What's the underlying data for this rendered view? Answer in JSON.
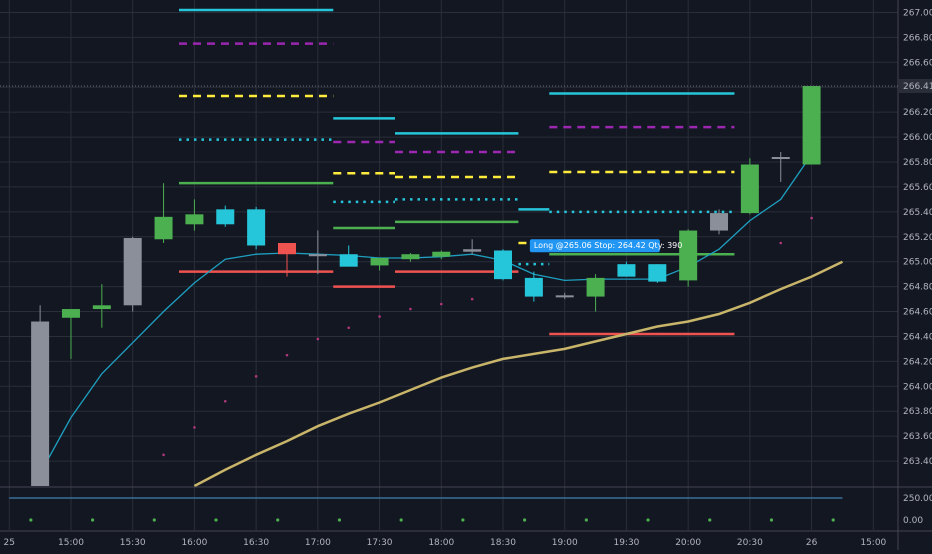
{
  "colors": {
    "background": "#131722",
    "grid": "#2a2e39",
    "text": "#b2b5be",
    "bull": "#4caf50",
    "bear": "#26c6da",
    "doji": "#8a8f9a",
    "ema_fast": "#1e9fc0",
    "sma_slow": "#c8b56a",
    "cyan_level": "#26c6da",
    "purple_level": "#9c27b0",
    "yellow_level": "#ffeb3b",
    "green_level": "#4caf50",
    "red_level": "#ef5350",
    "sub_line": "#3a6e9a",
    "sub_dots": "#4caf50",
    "tooltip_bg": "#2196f3"
  },
  "chart_data": {
    "type": "candlestick",
    "title": "",
    "xlabel": "",
    "ylabel": "",
    "x_ticks": [
      "25",
      "15:00",
      "15:30",
      "16:00",
      "16:30",
      "17:00",
      "17:30",
      "18:00",
      "18:30",
      "19:00",
      "19:30",
      "20:00",
      "20:30",
      "26",
      "15:00"
    ],
    "x_range": [
      -1.3,
      27.8
    ],
    "ylim": [
      263.2,
      267.1
    ],
    "y_ticks": [
      "267.00",
      "266.80",
      "266.60",
      "266.40",
      "266.20",
      "266.00",
      "265.80",
      "265.60",
      "265.40",
      "265.20",
      "265.00",
      "264.80",
      "264.60",
      "264.40",
      "264.20",
      "264.00",
      "263.80",
      "263.60",
      "263.40"
    ],
    "last_price": "266.41",
    "candles": [
      {
        "t": 0,
        "o": 263.2,
        "h": 264.65,
        "l": 263.2,
        "c": 264.52
      },
      {
        "t": 1,
        "o": 264.55,
        "h": 264.6,
        "l": 264.22,
        "c": 264.62
      },
      {
        "t": 2,
        "o": 264.62,
        "h": 264.82,
        "l": 264.47,
        "c": 264.65
      },
      {
        "t": 3,
        "o": 264.65,
        "h": 265.2,
        "l": 264.6,
        "c": 265.19
      },
      {
        "t": 4,
        "o": 265.18,
        "h": 265.63,
        "l": 265.15,
        "c": 265.36
      },
      {
        "t": 5,
        "o": 265.3,
        "h": 265.5,
        "l": 265.25,
        "c": 265.38
      },
      {
        "t": 6,
        "o": 265.42,
        "h": 265.45,
        "l": 265.28,
        "c": 265.3
      },
      {
        "t": 7,
        "o": 265.42,
        "h": 265.44,
        "l": 265.1,
        "c": 265.13
      },
      {
        "t": 8,
        "o": 265.15,
        "h": 265.15,
        "l": 264.88,
        "c": 265.06
      },
      {
        "t": 9,
        "o": 265.06,
        "h": 265.25,
        "l": 264.9,
        "c": 265.05
      },
      {
        "t": 10,
        "o": 265.06,
        "h": 265.13,
        "l": 264.97,
        "c": 264.96
      },
      {
        "t": 11,
        "o": 264.97,
        "h": 265.03,
        "l": 264.93,
        "c": 265.03
      },
      {
        "t": 12,
        "o": 265.02,
        "h": 265.07,
        "l": 265.0,
        "c": 265.06
      },
      {
        "t": 13,
        "o": 265.04,
        "h": 265.09,
        "l": 265.02,
        "c": 265.08
      },
      {
        "t": 14,
        "o": 265.1,
        "h": 265.18,
        "l": 265.06,
        "c": 265.08
      },
      {
        "t": 15,
        "o": 265.09,
        "h": 265.1,
        "l": 264.85,
        "c": 264.86
      },
      {
        "t": 16,
        "o": 264.87,
        "h": 264.92,
        "l": 264.68,
        "c": 264.72
      },
      {
        "t": 17,
        "o": 264.72,
        "h": 264.75,
        "l": 264.7,
        "c": 264.73
      },
      {
        "t": 18,
        "o": 264.72,
        "h": 264.9,
        "l": 264.6,
        "c": 264.87
      },
      {
        "t": 19,
        "o": 264.98,
        "h": 265.0,
        "l": 264.88,
        "c": 264.88
      },
      {
        "t": 20,
        "o": 264.98,
        "h": 264.98,
        "l": 264.83,
        "c": 264.84
      },
      {
        "t": 21,
        "o": 264.85,
        "h": 265.26,
        "l": 264.8,
        "c": 265.25
      },
      {
        "t": 22,
        "o": 265.25,
        "h": 265.42,
        "l": 265.22,
        "c": 265.39
      },
      {
        "t": 23,
        "o": 265.39,
        "h": 265.83,
        "l": 265.38,
        "c": 265.78
      },
      {
        "t": 24,
        "o": 265.84,
        "h": 265.88,
        "l": 265.64,
        "c": 265.83
      },
      {
        "t": 25,
        "o": 265.78,
        "h": 266.41,
        "l": 265.78,
        "c": 266.41
      }
    ],
    "ema_fast": [
      [
        0,
        263.3
      ],
      [
        1,
        263.75
      ],
      [
        2,
        264.1
      ],
      [
        3,
        264.35
      ],
      [
        4,
        264.6
      ],
      [
        5,
        264.83
      ],
      [
        6,
        265.02
      ],
      [
        7,
        265.06
      ],
      [
        8,
        265.07
      ],
      [
        9,
        265.06
      ],
      [
        10,
        265.05
      ],
      [
        11,
        265.03
      ],
      [
        12,
        265.03
      ],
      [
        13,
        265.04
      ],
      [
        14,
        265.06
      ],
      [
        15,
        265.01
      ],
      [
        16,
        264.9
      ],
      [
        17,
        264.85
      ],
      [
        18,
        264.86
      ],
      [
        19,
        264.86
      ],
      [
        20,
        264.86
      ],
      [
        21,
        264.96
      ],
      [
        22,
        265.1
      ],
      [
        23,
        265.33
      ],
      [
        24,
        265.5
      ],
      [
        25,
        265.86
      ]
    ],
    "sma_slow": [
      [
        5,
        263.2
      ],
      [
        6,
        263.33
      ],
      [
        7,
        263.45
      ],
      [
        8,
        263.56
      ],
      [
        9,
        263.68
      ],
      [
        10,
        263.78
      ],
      [
        11,
        263.87
      ],
      [
        12,
        263.97
      ],
      [
        13,
        264.07
      ],
      [
        14,
        264.15
      ],
      [
        15,
        264.22
      ],
      [
        16,
        264.26
      ],
      [
        17,
        264.3
      ],
      [
        18,
        264.36
      ],
      [
        19,
        264.42
      ],
      [
        20,
        264.48
      ],
      [
        21,
        264.52
      ],
      [
        22,
        264.58
      ],
      [
        23,
        264.67
      ],
      [
        24,
        264.78
      ],
      [
        25,
        264.88
      ],
      [
        26,
        265.0
      ]
    ],
    "psar_dots": [
      [
        4,
        263.45
      ],
      [
        5,
        263.67
      ],
      [
        6,
        263.88
      ],
      [
        7,
        264.08
      ],
      [
        8,
        264.25
      ],
      [
        9,
        264.38
      ],
      [
        10,
        264.47
      ],
      [
        11,
        264.56
      ],
      [
        12,
        264.62
      ],
      [
        13,
        264.66
      ],
      [
        14,
        264.7
      ],
      [
        24,
        265.15
      ],
      [
        25,
        265.35
      ]
    ],
    "levels": [
      {
        "from": 5,
        "to": 10,
        "y": 267.02,
        "style": "solid",
        "color_key": "cyan_level"
      },
      {
        "from": 5,
        "to": 10,
        "y": 266.75,
        "style": "dashed",
        "color_key": "purple_level"
      },
      {
        "from": 5,
        "to": 10,
        "y": 266.33,
        "style": "dashed",
        "color_key": "yellow_level"
      },
      {
        "from": 5,
        "to": 10,
        "y": 265.98,
        "style": "dotted",
        "color_key": "cyan_level"
      },
      {
        "from": 5,
        "to": 10,
        "y": 265.63,
        "style": "solid",
        "color_key": "green_level"
      },
      {
        "from": 5,
        "to": 10,
        "y": 264.92,
        "style": "solid",
        "color_key": "red_level"
      },
      {
        "from": 10,
        "to": 12,
        "y": 266.15,
        "style": "solid",
        "color_key": "cyan_level"
      },
      {
        "from": 10,
        "to": 12,
        "y": 265.96,
        "style": "dashed",
        "color_key": "purple_level"
      },
      {
        "from": 10,
        "to": 12,
        "y": 265.71,
        "style": "dashed",
        "color_key": "yellow_level"
      },
      {
        "from": 10,
        "to": 12,
        "y": 265.48,
        "style": "dotted",
        "color_key": "cyan_level"
      },
      {
        "from": 10,
        "to": 12,
        "y": 265.27,
        "style": "solid",
        "color_key": "green_level"
      },
      {
        "from": 10,
        "to": 12,
        "y": 264.8,
        "style": "solid",
        "color_key": "red_level"
      },
      {
        "from": 12,
        "to": 16,
        "y": 266.03,
        "style": "solid",
        "color_key": "cyan_level"
      },
      {
        "from": 12,
        "to": 16,
        "y": 265.88,
        "style": "dashed",
        "color_key": "purple_level"
      },
      {
        "from": 12,
        "to": 16,
        "y": 265.68,
        "style": "dashed",
        "color_key": "yellow_level"
      },
      {
        "from": 12,
        "to": 16,
        "y": 265.5,
        "style": "dotted",
        "color_key": "cyan_level"
      },
      {
        "from": 12,
        "to": 16,
        "y": 265.32,
        "style": "solid",
        "color_key": "green_level"
      },
      {
        "from": 12,
        "to": 16,
        "y": 264.92,
        "style": "solid",
        "color_key": "red_level"
      },
      {
        "from": 16,
        "to": 17,
        "y": 265.42,
        "style": "solid",
        "color_key": "cyan_level"
      },
      {
        "from": 16,
        "to": 17,
        "y": 265.15,
        "style": "dashed",
        "color_key": "yellow_level"
      },
      {
        "from": 16,
        "to": 17,
        "y": 264.98,
        "style": "dotted",
        "color_key": "cyan_level"
      },
      {
        "from": 17,
        "to": 23,
        "y": 266.35,
        "style": "solid",
        "color_key": "cyan_level"
      },
      {
        "from": 17,
        "to": 23,
        "y": 266.08,
        "style": "dashed",
        "color_key": "purple_level"
      },
      {
        "from": 17,
        "to": 23,
        "y": 265.72,
        "style": "dashed",
        "color_key": "yellow_level"
      },
      {
        "from": 17,
        "to": 23,
        "y": 265.4,
        "style": "dotted",
        "color_key": "cyan_level"
      },
      {
        "from": 17,
        "to": 23,
        "y": 265.06,
        "style": "solid",
        "color_key": "green_level"
      },
      {
        "from": 17,
        "to": 23,
        "y": 264.42,
        "style": "solid",
        "color_key": "red_level"
      }
    ],
    "tooltip": {
      "text": "Long @265.06 Stop: 264.42 Qty: 390",
      "x": 16,
      "y": 265.06
    },
    "sub_pane": {
      "y_ticks": [
        "250.00",
        "0.00"
      ],
      "line_value": 250.0,
      "dots_value": 0.0
    }
  }
}
